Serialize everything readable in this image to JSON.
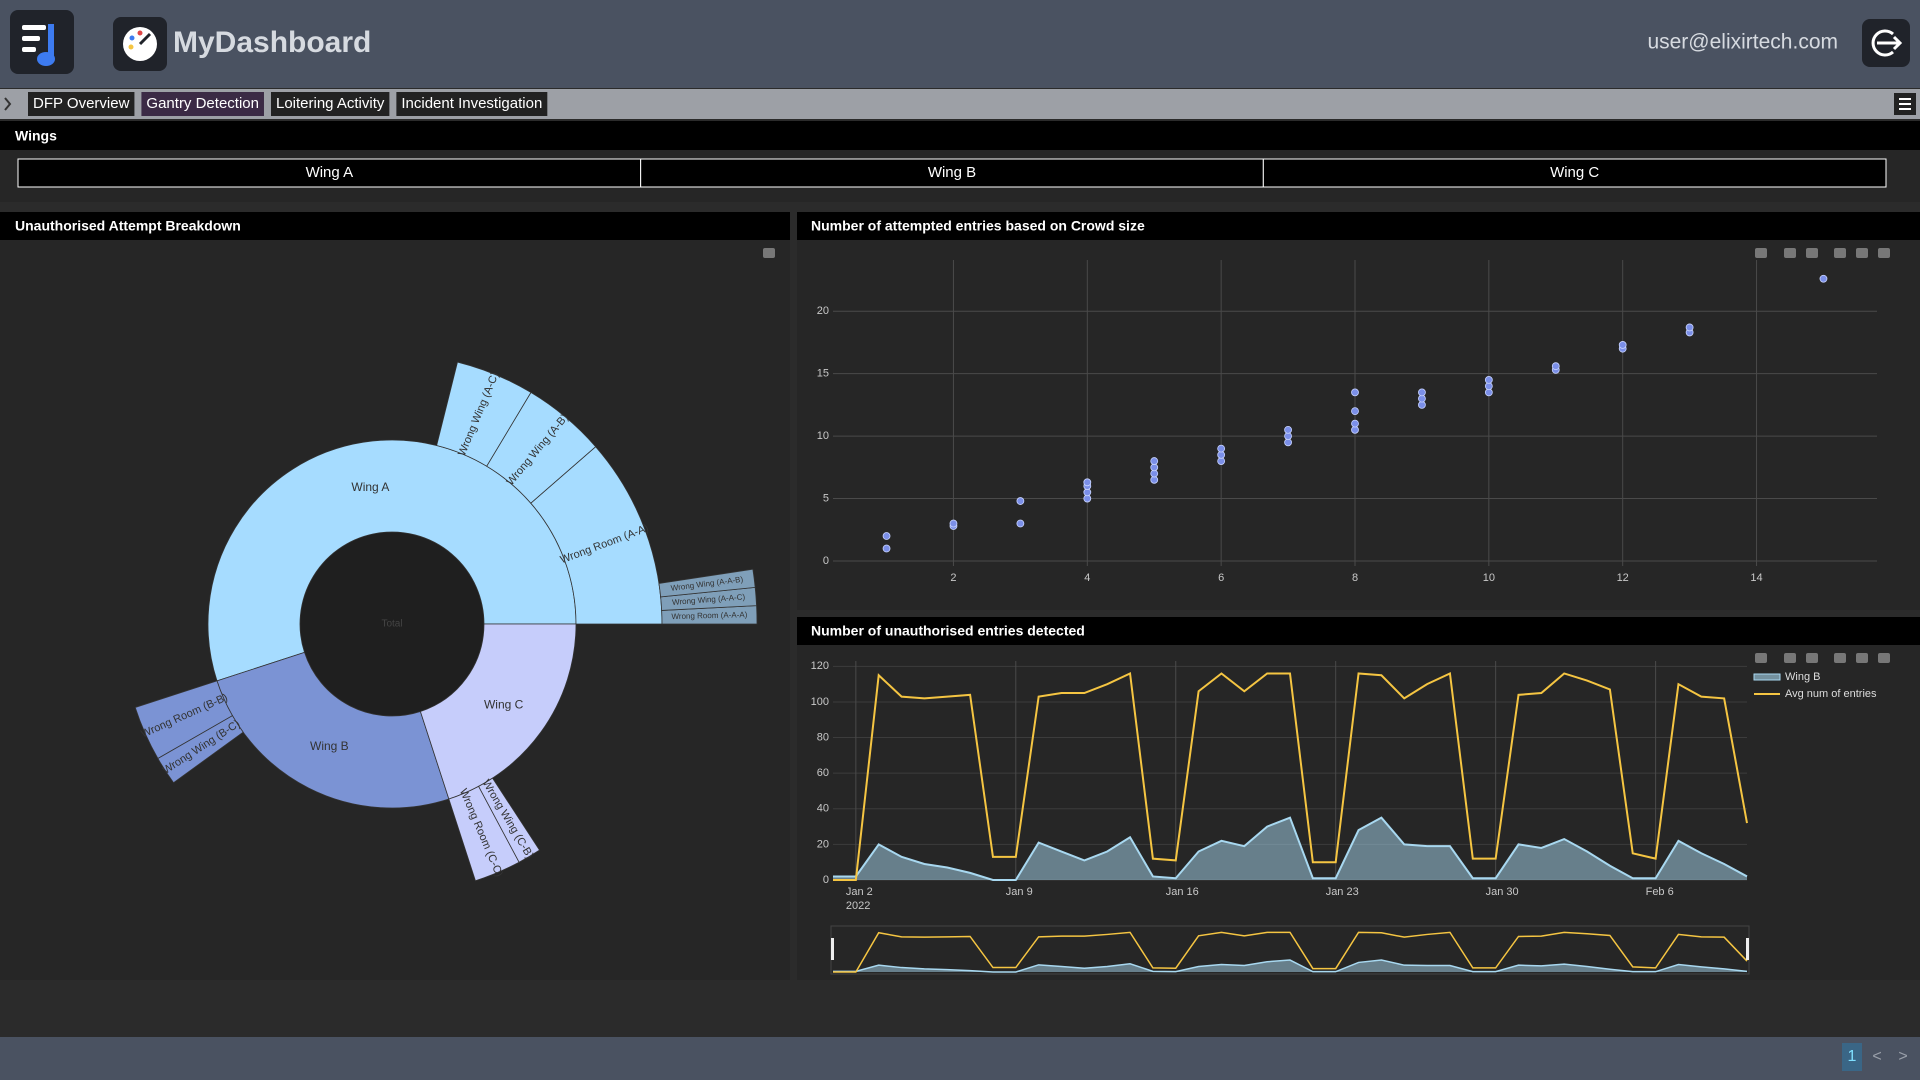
{
  "header": {
    "title": "MyDashboard",
    "user": "user@elixirtech.com"
  },
  "tabs": {
    "items": [
      "DFP Overview",
      "Gantry Detection",
      "Loitering Activity",
      "Incident Investigation"
    ],
    "active": 1
  },
  "wings": {
    "title": "Wings",
    "buttons": [
      "Wing A",
      "Wing B",
      "Wing C"
    ]
  },
  "chart_data": [
    {
      "type": "sunburst",
      "title": "Unauthorised Attempt Breakdown",
      "branchvalues": "total",
      "nodes": [
        {
          "label": "Total",
          "parent": null
        },
        {
          "label": "Wing A",
          "parent": "Total",
          "value": 55,
          "color": "#a6dcff"
        },
        {
          "label": "Wing B",
          "parent": "Total",
          "value": 25,
          "color": "#7b93d4"
        },
        {
          "label": "Wing C",
          "parent": "Total",
          "value": 20,
          "color": "#c6cdfb"
        },
        {
          "label": "Wrong Room (A-A)",
          "parent": "Wing A",
          "value": 11.4,
          "color": "#a6dcff"
        },
        {
          "label": "Wrong Wing (A-B)",
          "parent": "Wing A",
          "value": 5,
          "color": "#a6dcff"
        },
        {
          "label": "Wrong Wing (A-C)",
          "parent": "Wing A",
          "value": 4.7,
          "color": "#a6dcff"
        },
        {
          "label": "Wrong Room (A-A-A)",
          "parent": "Wrong Room (A-A)",
          "value": 0.8,
          "color": "#7f9fb9"
        },
        {
          "label": "Wrong Wing (A-A-C)",
          "parent": "Wrong Room (A-A)",
          "value": 0.8,
          "color": "#7f9fb9"
        },
        {
          "label": "Wrong Wing (A-A-B)",
          "parent": "Wrong Room (A-A)",
          "value": 0.8,
          "color": "#7f9fb9"
        },
        {
          "label": "Wrong Room (B-B)",
          "parent": "Wing B",
          "value": 3.3,
          "color": "#7b93d4"
        },
        {
          "label": "Wrong Wing (B-C)",
          "parent": "Wing B",
          "value": 1.7,
          "color": "#7b93d4"
        },
        {
          "label": "Wrong Room (C-C)",
          "parent": "Wing C",
          "value": 2.8,
          "color": "#c6cdfb"
        },
        {
          "label": "Wrong Wing (C-B)",
          "parent": "Wing C",
          "value": 1.4,
          "color": "#c6cdfb"
        }
      ]
    },
    {
      "type": "scatter",
      "title": "Number of attempted entries based on Crowd size",
      "color": "#7b8fe8",
      "grid": true,
      "x": [
        1,
        1,
        2,
        2,
        3,
        3,
        4,
        4,
        4,
        4,
        5,
        5,
        5,
        5,
        6,
        6,
        6,
        7,
        7,
        7,
        8,
        8,
        8,
        8,
        9,
        9,
        9,
        10,
        10,
        10,
        11,
        11,
        12,
        12,
        13,
        13,
        15
      ],
      "values": [
        1,
        2,
        2.8,
        3,
        3,
        4.8,
        5,
        5.5,
        6,
        6.3,
        6.5,
        7,
        7.5,
        8,
        8,
        8.5,
        9,
        9.5,
        10,
        10.5,
        10.5,
        11,
        12,
        13.5,
        12.5,
        13,
        13.5,
        13.5,
        14,
        14.5,
        15.3,
        15.6,
        17,
        17.3,
        18.3,
        18.7,
        22.6
      ],
      "xlim": [
        0.2,
        15.8
      ],
      "ylim": [
        -0.4,
        24.1
      ],
      "xticks": [
        2,
        4,
        6,
        8,
        10,
        12,
        14
      ],
      "yticks": [
        0,
        5,
        10,
        15,
        20
      ]
    },
    {
      "type": "line",
      "title": "Number of unauthorised entries detected",
      "grid": true,
      "legend": "top-right",
      "rangeslider": true,
      "x": [
        "2022-01-01",
        "2022-01-02",
        "2022-01-03",
        "2022-01-04",
        "2022-01-05",
        "2022-01-06",
        "2022-01-07",
        "2022-01-08",
        "2022-01-09",
        "2022-01-10",
        "2022-01-11",
        "2022-01-12",
        "2022-01-13",
        "2022-01-14",
        "2022-01-15",
        "2022-01-16",
        "2022-01-17",
        "2022-01-18",
        "2022-01-19",
        "2022-01-20",
        "2022-01-21",
        "2022-01-22",
        "2022-01-23",
        "2022-01-24",
        "2022-01-25",
        "2022-01-26",
        "2022-01-27",
        "2022-01-28",
        "2022-01-29",
        "2022-01-30",
        "2022-01-31",
        "2022-02-01",
        "2022-02-02",
        "2022-02-03",
        "2022-02-04",
        "2022-02-05",
        "2022-02-06",
        "2022-02-07",
        "2022-02-08",
        "2022-02-09",
        "2022-02-10"
      ],
      "series": [
        {
          "name": "Wing B",
          "color": "#a8d8f0",
          "fill": "tozeroy",
          "values": [
            2,
            2,
            20,
            13,
            9,
            7,
            4,
            0,
            0,
            21,
            16,
            11,
            16,
            24,
            2,
            1,
            16,
            22,
            19,
            30,
            35,
            1,
            1,
            28,
            35,
            20,
            19,
            19,
            1,
            1,
            20,
            18,
            23,
            16,
            8,
            1,
            1,
            22,
            15,
            9,
            2
          ]
        },
        {
          "name": "Avg num of entries",
          "color": "#f5c542",
          "values": [
            0,
            0,
            115,
            103,
            102,
            103,
            104,
            13,
            13,
            103,
            105,
            105,
            110,
            116,
            12,
            11,
            106,
            116,
            106,
            116,
            116,
            10,
            10,
            116,
            115,
            102,
            110,
            116,
            12,
            12,
            104,
            105,
            116,
            112,
            107,
            15,
            12,
            110,
            103,
            102,
            32
          ]
        }
      ],
      "xlim": [
        "2022-01-01",
        "2022-02-10"
      ],
      "ylim": [
        0,
        123
      ],
      "xticks": [
        {
          "value": "2022-01-02",
          "label": "Jan 2",
          "year": "2022"
        },
        {
          "value": "2022-01-09",
          "label": "Jan 9"
        },
        {
          "value": "2022-01-16",
          "label": "Jan 16"
        },
        {
          "value": "2022-01-23",
          "label": "Jan 23"
        },
        {
          "value": "2022-01-30",
          "label": "Jan 30"
        },
        {
          "value": "2022-02-06",
          "label": "Feb 6"
        }
      ],
      "yticks": [
        0,
        20,
        40,
        60,
        80,
        100,
        120
      ]
    }
  ],
  "pagination": {
    "page": "1",
    "prev": "<",
    "next": ">"
  }
}
